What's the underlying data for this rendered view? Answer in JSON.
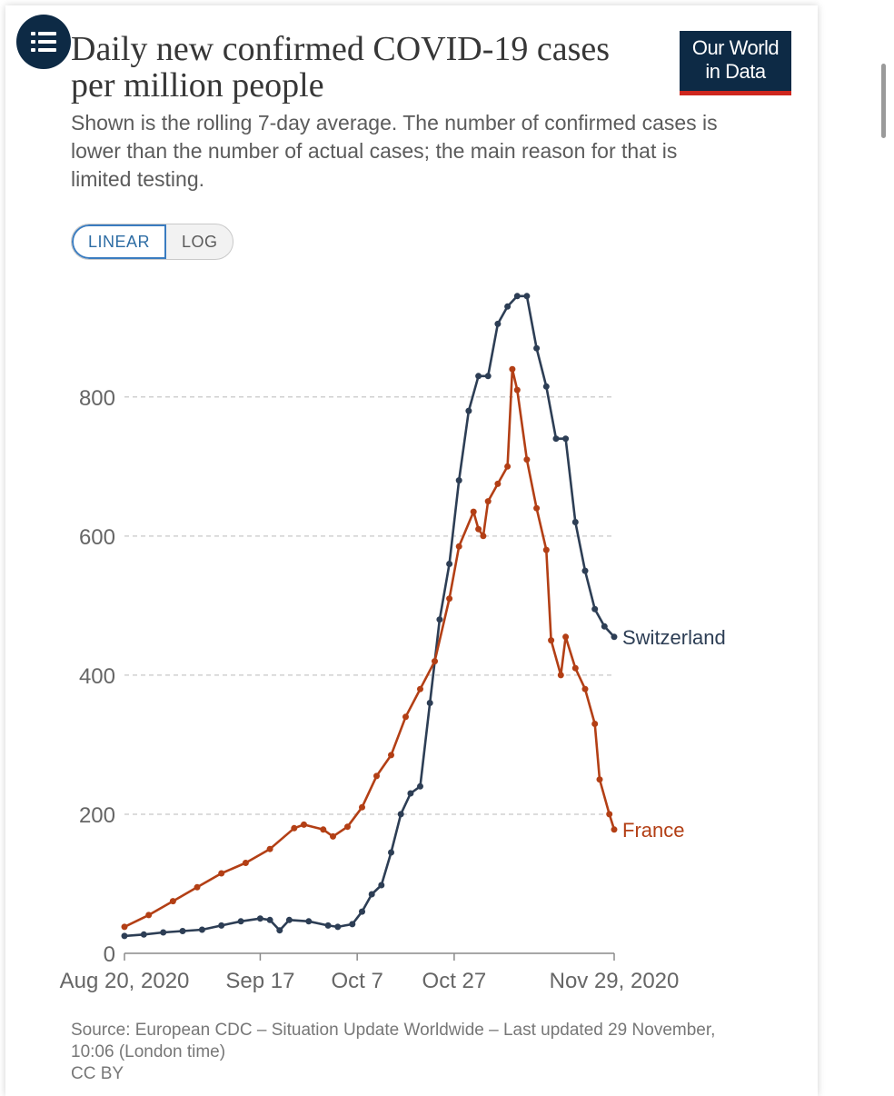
{
  "header": {
    "title": "Daily new confirmed COVID-19 cases per million people",
    "subtitle": "Shown is the rolling 7-day average. The number of confirmed cases is lower than the number of actual cases; the main reason for that is limited testing.",
    "logo_line1": "Our World",
    "logo_line2": "in Data",
    "menu_icon": "list-icon"
  },
  "scale_toggle": {
    "linear_label": "LINEAR",
    "log_label": "LOG",
    "selected": "LINEAR"
  },
  "footer": {
    "source": "Source: European CDC – Situation Update Worldwide – Last updated 29 November, 10:06 (London time)",
    "license": "CC BY"
  },
  "colors": {
    "switzerland": "#2d3e55",
    "france": "#b33f15",
    "brand": "#0d2a45",
    "brand_accent": "#ce261e"
  },
  "chart_data": {
    "type": "line",
    "title": "Daily new confirmed COVID-19 cases per million people",
    "xlim": [
      "2020-08-20",
      "2020-11-29"
    ],
    "ylim": [
      0,
      950
    ],
    "y_ticks": [
      0,
      200,
      400,
      600,
      800
    ],
    "x_ticks": [
      "Aug 20, 2020",
      "Sep 17",
      "Oct 7",
      "Oct 27",
      "Nov 29, 2020"
    ],
    "x_tick_dates": [
      "2020-08-20",
      "2020-09-17",
      "2020-10-07",
      "2020-10-27",
      "2020-11-29"
    ],
    "grid": "horizontal-dashed",
    "legend": "end-of-line labels",
    "series": [
      {
        "name": "Switzerland",
        "points": [
          [
            "2020-08-20",
            25
          ],
          [
            "2020-08-24",
            27
          ],
          [
            "2020-08-28",
            30
          ],
          [
            "2020-09-01",
            32
          ],
          [
            "2020-09-05",
            34
          ],
          [
            "2020-09-09",
            40
          ],
          [
            "2020-09-13",
            46
          ],
          [
            "2020-09-17",
            50
          ],
          [
            "2020-09-19",
            48
          ],
          [
            "2020-09-21",
            33
          ],
          [
            "2020-09-23",
            48
          ],
          [
            "2020-09-27",
            46
          ],
          [
            "2020-10-01",
            40
          ],
          [
            "2020-10-03",
            38
          ],
          [
            "2020-10-06",
            42
          ],
          [
            "2020-10-08",
            60
          ],
          [
            "2020-10-10",
            85
          ],
          [
            "2020-10-12",
            98
          ],
          [
            "2020-10-14",
            145
          ],
          [
            "2020-10-16",
            200
          ],
          [
            "2020-10-18",
            230
          ],
          [
            "2020-10-20",
            240
          ],
          [
            "2020-10-22",
            360
          ],
          [
            "2020-10-24",
            480
          ],
          [
            "2020-10-26",
            560
          ],
          [
            "2020-10-28",
            680
          ],
          [
            "2020-10-30",
            780
          ],
          [
            "2020-11-01",
            830
          ],
          [
            "2020-11-03",
            830
          ],
          [
            "2020-11-05",
            905
          ],
          [
            "2020-11-07",
            930
          ],
          [
            "2020-11-09",
            945
          ],
          [
            "2020-11-11",
            945
          ],
          [
            "2020-11-13",
            870
          ],
          [
            "2020-11-15",
            815
          ],
          [
            "2020-11-17",
            740
          ],
          [
            "2020-11-19",
            740
          ],
          [
            "2020-11-21",
            620
          ],
          [
            "2020-11-23",
            550
          ],
          [
            "2020-11-25",
            495
          ],
          [
            "2020-11-27",
            470
          ],
          [
            "2020-11-29",
            455
          ]
        ]
      },
      {
        "name": "France",
        "points": [
          [
            "2020-08-20",
            38
          ],
          [
            "2020-08-25",
            55
          ],
          [
            "2020-08-30",
            75
          ],
          [
            "2020-09-04",
            95
          ],
          [
            "2020-09-09",
            115
          ],
          [
            "2020-09-14",
            130
          ],
          [
            "2020-09-19",
            150
          ],
          [
            "2020-09-24",
            180
          ],
          [
            "2020-09-26",
            185
          ],
          [
            "2020-09-30",
            178
          ],
          [
            "2020-10-02",
            168
          ],
          [
            "2020-10-05",
            182
          ],
          [
            "2020-10-08",
            210
          ],
          [
            "2020-10-11",
            255
          ],
          [
            "2020-10-14",
            285
          ],
          [
            "2020-10-17",
            340
          ],
          [
            "2020-10-20",
            380
          ],
          [
            "2020-10-23",
            420
          ],
          [
            "2020-10-26",
            510
          ],
          [
            "2020-10-28",
            585
          ],
          [
            "2020-10-31",
            635
          ],
          [
            "2020-11-01",
            610
          ],
          [
            "2020-11-02",
            600
          ],
          [
            "2020-11-03",
            650
          ],
          [
            "2020-11-05",
            675
          ],
          [
            "2020-11-07",
            700
          ],
          [
            "2020-11-08",
            840
          ],
          [
            "2020-11-09",
            810
          ],
          [
            "2020-11-11",
            710
          ],
          [
            "2020-11-13",
            640
          ],
          [
            "2020-11-15",
            580
          ],
          [
            "2020-11-16",
            450
          ],
          [
            "2020-11-18",
            400
          ],
          [
            "2020-11-19",
            455
          ],
          [
            "2020-11-21",
            410
          ],
          [
            "2020-11-23",
            380
          ],
          [
            "2020-11-25",
            330
          ],
          [
            "2020-11-26",
            250
          ],
          [
            "2020-11-28",
            200
          ],
          [
            "2020-11-29",
            178
          ]
        ]
      }
    ]
  }
}
